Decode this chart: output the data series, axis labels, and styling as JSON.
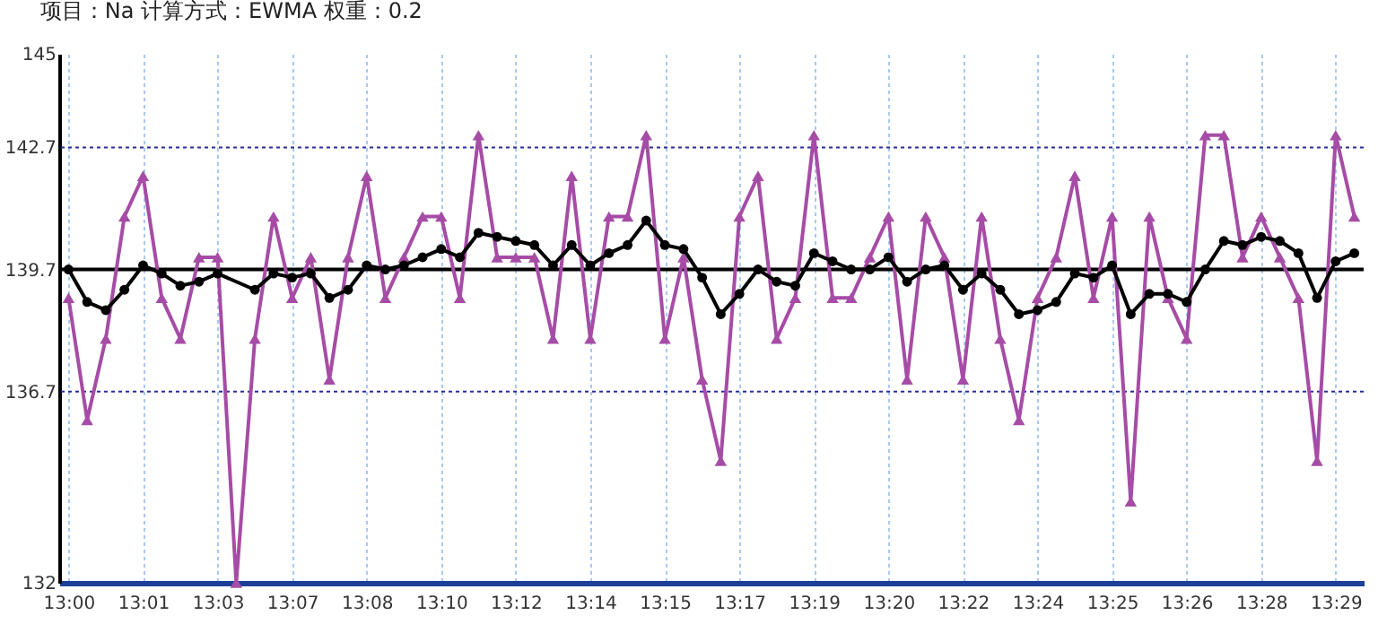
{
  "chart_data": {
    "type": "line",
    "title": "项目：Na        计算方式：EWMA        权重：0.2",
    "categories": [
      "13:00",
      null,
      null,
      null,
      "13:01",
      null,
      null,
      null,
      "13:03",
      null,
      null,
      null,
      "13:07",
      null,
      null,
      null,
      "13:08",
      null,
      null,
      null,
      "13:10",
      null,
      null,
      null,
      "13:12",
      null,
      null,
      null,
      "13:14",
      null,
      null,
      null,
      "13:15",
      null,
      null,
      null,
      "13:17",
      null,
      null,
      null,
      "13:19",
      null,
      null,
      null,
      "13:20",
      null,
      null,
      null,
      "13:22",
      null,
      null,
      null,
      "13:24",
      null,
      null,
      null,
      "13:25",
      null,
      null,
      null,
      "13:26",
      null,
      null,
      null,
      "13:28",
      null,
      null,
      null,
      "13:29",
      null
    ],
    "series": [
      {
        "color": "#a64ca6",
        "marker": "triangle",
        "values": [
          139,
          136,
          138,
          141,
          142,
          139,
          138,
          140,
          140,
          132,
          138,
          141,
          139,
          140,
          137,
          140,
          142,
          139,
          140,
          141,
          141,
          139,
          143,
          140,
          140,
          140,
          138,
          142,
          138,
          141,
          141,
          143,
          138,
          140,
          137,
          135,
          141,
          142,
          138,
          139,
          143,
          139,
          139,
          140,
          141,
          137,
          141,
          140,
          137,
          141,
          138,
          136,
          139,
          140,
          142,
          139,
          141,
          134,
          141,
          139,
          138,
          143,
          143,
          140,
          141,
          140,
          139,
          135,
          143,
          141
        ]
      },
      {
        "color": "#000000",
        "marker": "circle",
        "values": [
          139.7,
          138.9,
          138.7,
          139.2,
          139.8,
          139.6,
          139.3,
          139.4,
          139.6,
          null,
          139.2,
          139.6,
          139.5,
          139.6,
          139.0,
          139.2,
          139.8,
          139.7,
          139.8,
          140.0,
          140.2,
          140.0,
          140.6,
          140.5,
          140.4,
          140.3,
          139.8,
          140.3,
          139.8,
          140.1,
          140.3,
          140.9,
          140.3,
          140.2,
          139.5,
          138.6,
          139.1,
          139.7,
          139.4,
          139.3,
          140.1,
          139.9,
          139.7,
          139.7,
          140.0,
          139.4,
          139.7,
          139.8,
          139.2,
          139.6,
          139.2,
          138.6,
          138.7,
          138.9,
          139.6,
          139.5,
          139.8,
          138.6,
          139.1,
          139.1,
          138.9,
          139.7,
          140.4,
          140.3,
          140.5,
          140.4,
          140.1,
          139.0,
          139.9,
          140.1
        ]
      }
    ],
    "ylim": [
      132,
      145
    ],
    "yticks": [
      132,
      136.7,
      139.7,
      142.7,
      145
    ],
    "ref_lines": [
      {
        "axis": "y",
        "value": 139.7,
        "color": "#000000",
        "line_style": "solid"
      },
      {
        "axis": "y",
        "value": 142.7,
        "color": "#2a2a9a",
        "line_style": "dotted"
      },
      {
        "axis": "y",
        "value": 136.7,
        "color": "#2a2a9a",
        "line_style": "dotted"
      }
    ],
    "grid": "x",
    "line_style": "solid"
  }
}
